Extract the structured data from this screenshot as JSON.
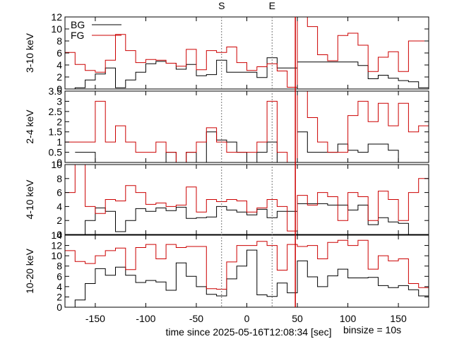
{
  "colors": {
    "bg": "#000000",
    "fg": "#cc0000",
    "marker": "#777777",
    "axis": "#000000"
  },
  "xlabel": "time since 2025-05-16T12:08:34 [sec]",
  "binsize_label": "binsize = 10s",
  "chart_data": {
    "type": "line",
    "step": true,
    "xlim": [
      -180,
      180
    ],
    "x_ticks": [
      -150,
      -100,
      -50,
      0,
      50,
      100,
      150
    ],
    "grid": false,
    "legend": {
      "position": "top-left",
      "entries": [
        "BG",
        "FG"
      ]
    },
    "markers": [
      {
        "label": "S",
        "x": -25
      },
      {
        "label": "E",
        "x": 25
      }
    ],
    "flare_line_x": 48,
    "panels": [
      {
        "ylabel": "3-10 keV",
        "ylim": [
          0,
          12
        ],
        "y_ticks": [
          0,
          2,
          4,
          6,
          8,
          10,
          12
        ],
        "legend": true,
        "series": [
          {
            "name": "BG",
            "edges": [
              -180,
              -170,
              -160,
              -150,
              -140,
              -130,
              -120,
              -110,
              -100,
              -90,
              -80,
              -70,
              -60,
              -50,
              -40,
              -30,
              -20,
              -10,
              0,
              10,
              20,
              30,
              50,
              60,
              70,
              80,
              90,
              100,
              110,
              120,
              130,
              140,
              150,
              160,
              170,
              180
            ],
            "values": [
              0,
              0.2,
              1.5,
              2.5,
              3.5,
              0.2,
              1.5,
              2.8,
              4.2,
              4.6,
              4.3,
              3.3,
              4.1,
              2.2,
              2.4,
              4.8,
              2.8,
              2.8,
              2.8,
              1.9,
              5.2,
              3.5,
              4.5,
              4.5,
              4.5,
              4.5,
              4.5,
              4.5,
              3.9,
              1.7,
              2.3,
              1.8,
              1.4,
              1.2,
              0.2
            ]
          },
          {
            "name": "FG",
            "edges": [
              -180,
              -170,
              -160,
              -150,
              -140,
              -130,
              -120,
              -110,
              -100,
              -90,
              -80,
              -70,
              -60,
              -50,
              -40,
              -30,
              -20,
              -10,
              0,
              10,
              20,
              30,
              40,
              50,
              60,
              70,
              80,
              90,
              100,
              110,
              120,
              130,
              140,
              150,
              160,
              170,
              180
            ],
            "values": [
              6.1,
              4.1,
              3.1,
              2.8,
              4.8,
              9.1,
              6.4,
              4.4,
              4.9,
              4.8,
              4.3,
              3.8,
              6.6,
              3.2,
              6.4,
              6.1,
              7.0,
              4.4,
              3.1,
              3.7,
              4.2,
              3.0,
              0.3,
              14.0,
              10.4,
              5.7,
              4.7,
              8.9,
              9.3,
              7.3,
              2.9,
              5.3,
              6.2,
              2.9,
              8.0,
              8.0
            ]
          }
        ]
      },
      {
        "ylabel": "2-4 keV",
        "ylim": [
          0,
          3.5
        ],
        "y_ticks": [
          0,
          0.5,
          1,
          1.5,
          2,
          2.5,
          3,
          3.5
        ],
        "series": [
          {
            "name": "BG",
            "edges": [
              -170,
              -150,
              -140,
              -100,
              -90,
              -80,
              -70,
              -60,
              -50,
              -40,
              -30,
              -20,
              -10,
              0,
              10,
              20,
              30,
              50,
              60,
              70,
              80,
              90,
              100,
              110,
              120,
              130,
              140,
              150,
              160,
              170
            ],
            "values": [
              0.5,
              0,
              0,
              0,
              0,
              0.5,
              0,
              0.5,
              0,
              1.5,
              1.1,
              1,
              0.5,
              0,
              0.5,
              1,
              0,
              1.5,
              0.5,
              0.5,
              0.5,
              0.9,
              0.6,
              0.5,
              0.9,
              0.9,
              0.6,
              0,
              0,
              0
            ]
          },
          {
            "name": "FG",
            "edges": [
              -180,
              -170,
              -160,
              -150,
              -140,
              -130,
              -120,
              -110,
              -100,
              -90,
              -80,
              -70,
              -60,
              -50,
              -40,
              -30,
              -20,
              -10,
              0,
              10,
              20,
              30,
              40,
              50,
              60,
              70,
              80,
              90,
              100,
              110,
              120,
              130,
              140,
              150,
              160,
              170,
              180
            ],
            "values": [
              1,
              1,
              1,
              3.0,
              1,
              1.8,
              1,
              0.5,
              0.5,
              1,
              0.5,
              0,
              0.5,
              1.0,
              1.7,
              1.0,
              0.5,
              0.5,
              0.5,
              1.0,
              3.0,
              0.5,
              0,
              4.2,
              2.2,
              1.0,
              0.5,
              0.5,
              2.3,
              3.0,
              2.0,
              2.9,
              1.8,
              2.9,
              1.5,
              1.8,
              0
            ]
          }
        ]
      },
      {
        "ylabel": "4-10 keV",
        "ylim": [
          0,
          10
        ],
        "y_ticks": [
          0,
          2,
          4,
          6,
          8,
          10
        ],
        "series": [
          {
            "name": "BG",
            "edges": [
              -170,
              -160,
              -150,
              -140,
              -130,
              -120,
              -110,
              -100,
              -90,
              -80,
              -70,
              -60,
              -50,
              -40,
              -30,
              -20,
              -10,
              0,
              10,
              20,
              30,
              50,
              60,
              70,
              80,
              90,
              100,
              110,
              120,
              130,
              140,
              150,
              160,
              170
            ],
            "values": [
              0,
              2.0,
              3.8,
              3.3,
              0.4,
              2.0,
              3.7,
              3.3,
              3.8,
              3.4,
              3.9,
              2.3,
              2.4,
              2.5,
              4.0,
              3.5,
              3.2,
              2.8,
              3.6,
              2.4,
              3.3,
              4.4,
              4.4,
              4.4,
              4.2,
              4.2,
              3.5,
              4.2,
              1.4,
              2.4,
              1.8,
              1.6,
              0
            ]
          },
          {
            "name": "FG",
            "edges": [
              -180,
              -170,
              -160,
              -150,
              -140,
              -130,
              -120,
              -110,
              -100,
              -90,
              -80,
              -70,
              -60,
              -50,
              -40,
              -30,
              -20,
              -10,
              0,
              10,
              20,
              30,
              40,
              50,
              60,
              70,
              80,
              90,
              100,
              110,
              120,
              130,
              140,
              150,
              160,
              170,
              180
            ],
            "values": [
              6.0,
              10.0,
              4.0,
              3.0,
              5.0,
              4.8,
              7.0,
              6.0,
              4.3,
              4.5,
              4.0,
              4.2,
              6.8,
              3.2,
              5.0,
              4.7,
              5.0,
              4.8,
              3.2,
              3.8,
              5.0,
              4.0,
              0.5,
              5.6,
              4.2,
              6.0,
              5.4,
              2.0,
              6.0,
              5.4,
              2.0,
              6.2,
              5.0,
              2.0,
              6.0,
              8.0,
              2.0
            ]
          }
        ]
      },
      {
        "ylabel": "10-20 keV",
        "ylim": [
          0,
          14
        ],
        "y_ticks": [
          0,
          2,
          4,
          6,
          8,
          10,
          12,
          14
        ],
        "series": [
          {
            "name": "BG",
            "edges": [
              -180,
              -170,
              -160,
              -150,
              -140,
              -130,
              -120,
              -110,
              -100,
              -90,
              -80,
              -70,
              -60,
              -50,
              -40,
              -30,
              -20,
              -10,
              0,
              10,
              20,
              30,
              40,
              50,
              60,
              70,
              80,
              90,
              100,
              110,
              120,
              130,
              140,
              150,
              160,
              170,
              180
            ],
            "values": [
              0,
              1.4,
              4.6,
              7.5,
              6.2,
              7.8,
              6.2,
              4.8,
              5.2,
              4.9,
              3.3,
              8.6,
              6.0,
              4.0,
              2.5,
              2.2,
              5.5,
              8.0,
              11.1,
              2.4,
              2.1,
              4.7,
              2.8,
              9.0,
              5.9,
              4.0,
              6.1,
              7.4,
              5.7,
              5.7,
              5.8,
              4.2,
              3.8,
              4.2,
              3.4,
              2.2,
              0
            ]
          },
          {
            "name": "FG",
            "edges": [
              -180,
              -170,
              -160,
              -150,
              -140,
              -130,
              -120,
              -110,
              -100,
              -90,
              -80,
              -70,
              -60,
              -50,
              -40,
              -30,
              -20,
              -10,
              0,
              10,
              20,
              30,
              40,
              50,
              60,
              70,
              80,
              90,
              100,
              110,
              120,
              130,
              140,
              150,
              160,
              170,
              180
            ],
            "values": [
              11.0,
              8.9,
              8.5,
              10.0,
              11.0,
              11.5,
              7.3,
              11.6,
              12.2,
              9.4,
              12.2,
              11.6,
              11.8,
              11.8,
              3.6,
              3.5,
              8.8,
              12.0,
              12.0,
              12.8,
              12.0,
              7.2,
              12.2,
              11.8,
              12.0,
              9.4,
              12.6,
              13.0,
              12.0,
              13.0,
              7.4,
              10.0,
              9.0,
              9.4,
              4.6,
              3.8,
              0
            ]
          }
        ]
      }
    ]
  }
}
